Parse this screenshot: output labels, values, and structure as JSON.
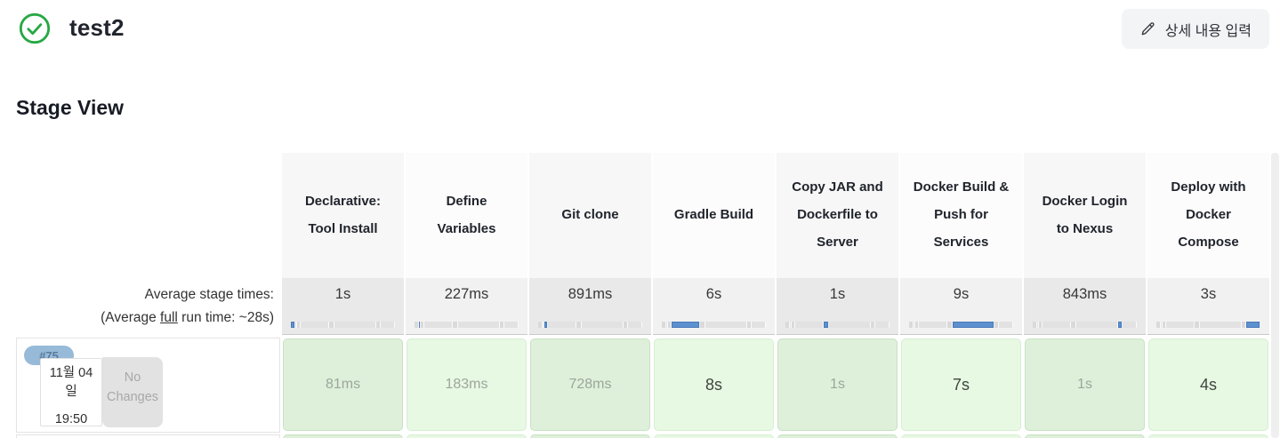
{
  "header": {
    "title": "test2",
    "status": "success",
    "status_color": "#27a844",
    "detail_button": {
      "label": "상세 내용 입력",
      "icon": "pencil-icon"
    }
  },
  "stage_view": {
    "title": "Stage View",
    "stages": [
      "Declarative: Tool Install",
      "Define Variables",
      "Git clone",
      "Gradle Build",
      "Copy JAR and Dockerfile to Server",
      "Docker Build & Push for Services",
      "Docker Login to Nexus",
      "Deploy with Docker Compose"
    ],
    "average": {
      "label_line1": "Average stage times:",
      "label_line2_prefix": "(Average ",
      "label_line2_underline": "full",
      "label_line2_suffix": " run time: ~28s)",
      "times": [
        "1s",
        "227ms",
        "891ms",
        "6s",
        "1s",
        "9s",
        "843ms",
        "3s"
      ],
      "durations_ms": [
        1000,
        227,
        891,
        6000,
        1000,
        9000,
        843,
        3000
      ],
      "bar_color": "#5d90cf"
    },
    "builds": [
      {
        "id": "#75",
        "date_line1": "11월 04",
        "date_line2": "일",
        "time": "19:50",
        "changes": "No Changes",
        "cells": [
          {
            "value": "81ms",
            "muted": true
          },
          {
            "value": "183ms",
            "muted": true
          },
          {
            "value": "728ms",
            "muted": true
          },
          {
            "value": "8s",
            "muted": false
          },
          {
            "value": "1s",
            "muted": true
          },
          {
            "value": "7s",
            "muted": false
          },
          {
            "value": "1s",
            "muted": true
          },
          {
            "value": "4s",
            "muted": false
          }
        ]
      }
    ],
    "cell_colors": {
      "success_bg_odd": "#def0da",
      "success_bg_even": "#e7f8e3",
      "success_border": "#c8e2c2"
    }
  }
}
